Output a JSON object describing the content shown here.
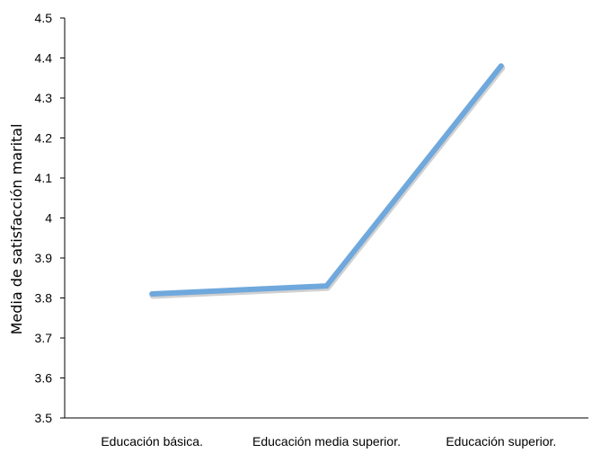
{
  "chart_data": {
    "type": "line",
    "title": "",
    "xlabel": "",
    "ylabel": "Media de satisfacción marital",
    "categories": [
      "Educación básica.",
      "Educación media superior.",
      "Educación superior."
    ],
    "series": [
      {
        "values": [
          3.81,
          3.83,
          4.38
        ]
      }
    ],
    "ylim": [
      3.5,
      4.5
    ],
    "yticks": [
      "3.5",
      "3.6",
      "3.7",
      "3.8",
      "3.9",
      "4",
      "4.1",
      "4.2",
      "4.3",
      "4.4",
      "4.5"
    ],
    "grid": false,
    "legend": "none",
    "line_color": "#6fa8dc"
  }
}
